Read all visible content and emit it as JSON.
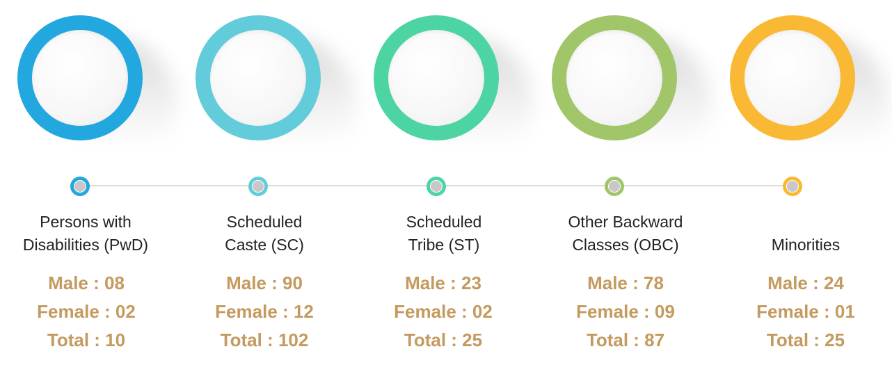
{
  "colors": {
    "pwd": "#23a7df",
    "sc": "#63ccdb",
    "st": "#4cd4a3",
    "obc": "#a1c66a",
    "minorities": "#f9b934",
    "stat_text": "#c49a5e",
    "line": "#d9d9d9"
  },
  "categories": [
    {
      "label_lines": [
        "Persons with",
        "Disabilities (PwD)"
      ],
      "male": "Male : 08",
      "female": "Female : 02",
      "total": "Total : 10"
    },
    {
      "label_lines": [
        "Scheduled",
        "Caste (SC)"
      ],
      "male": "Male : 90",
      "female": "Female : 12",
      "total": "Total : 102"
    },
    {
      "label_lines": [
        "Scheduled",
        "Tribe (ST)"
      ],
      "male": "Male : 23",
      "female": "Female : 02",
      "total": "Total : 25"
    },
    {
      "label_lines": [
        "Other Backward",
        "Classes (OBC)"
      ],
      "male": "Male : 78",
      "female": "Female : 09",
      "total": "Total : 87"
    },
    {
      "label_lines": [
        "",
        "Minorities"
      ],
      "male": "Male : 24",
      "female": "Female : 01",
      "total": "Total : 25"
    }
  ]
}
